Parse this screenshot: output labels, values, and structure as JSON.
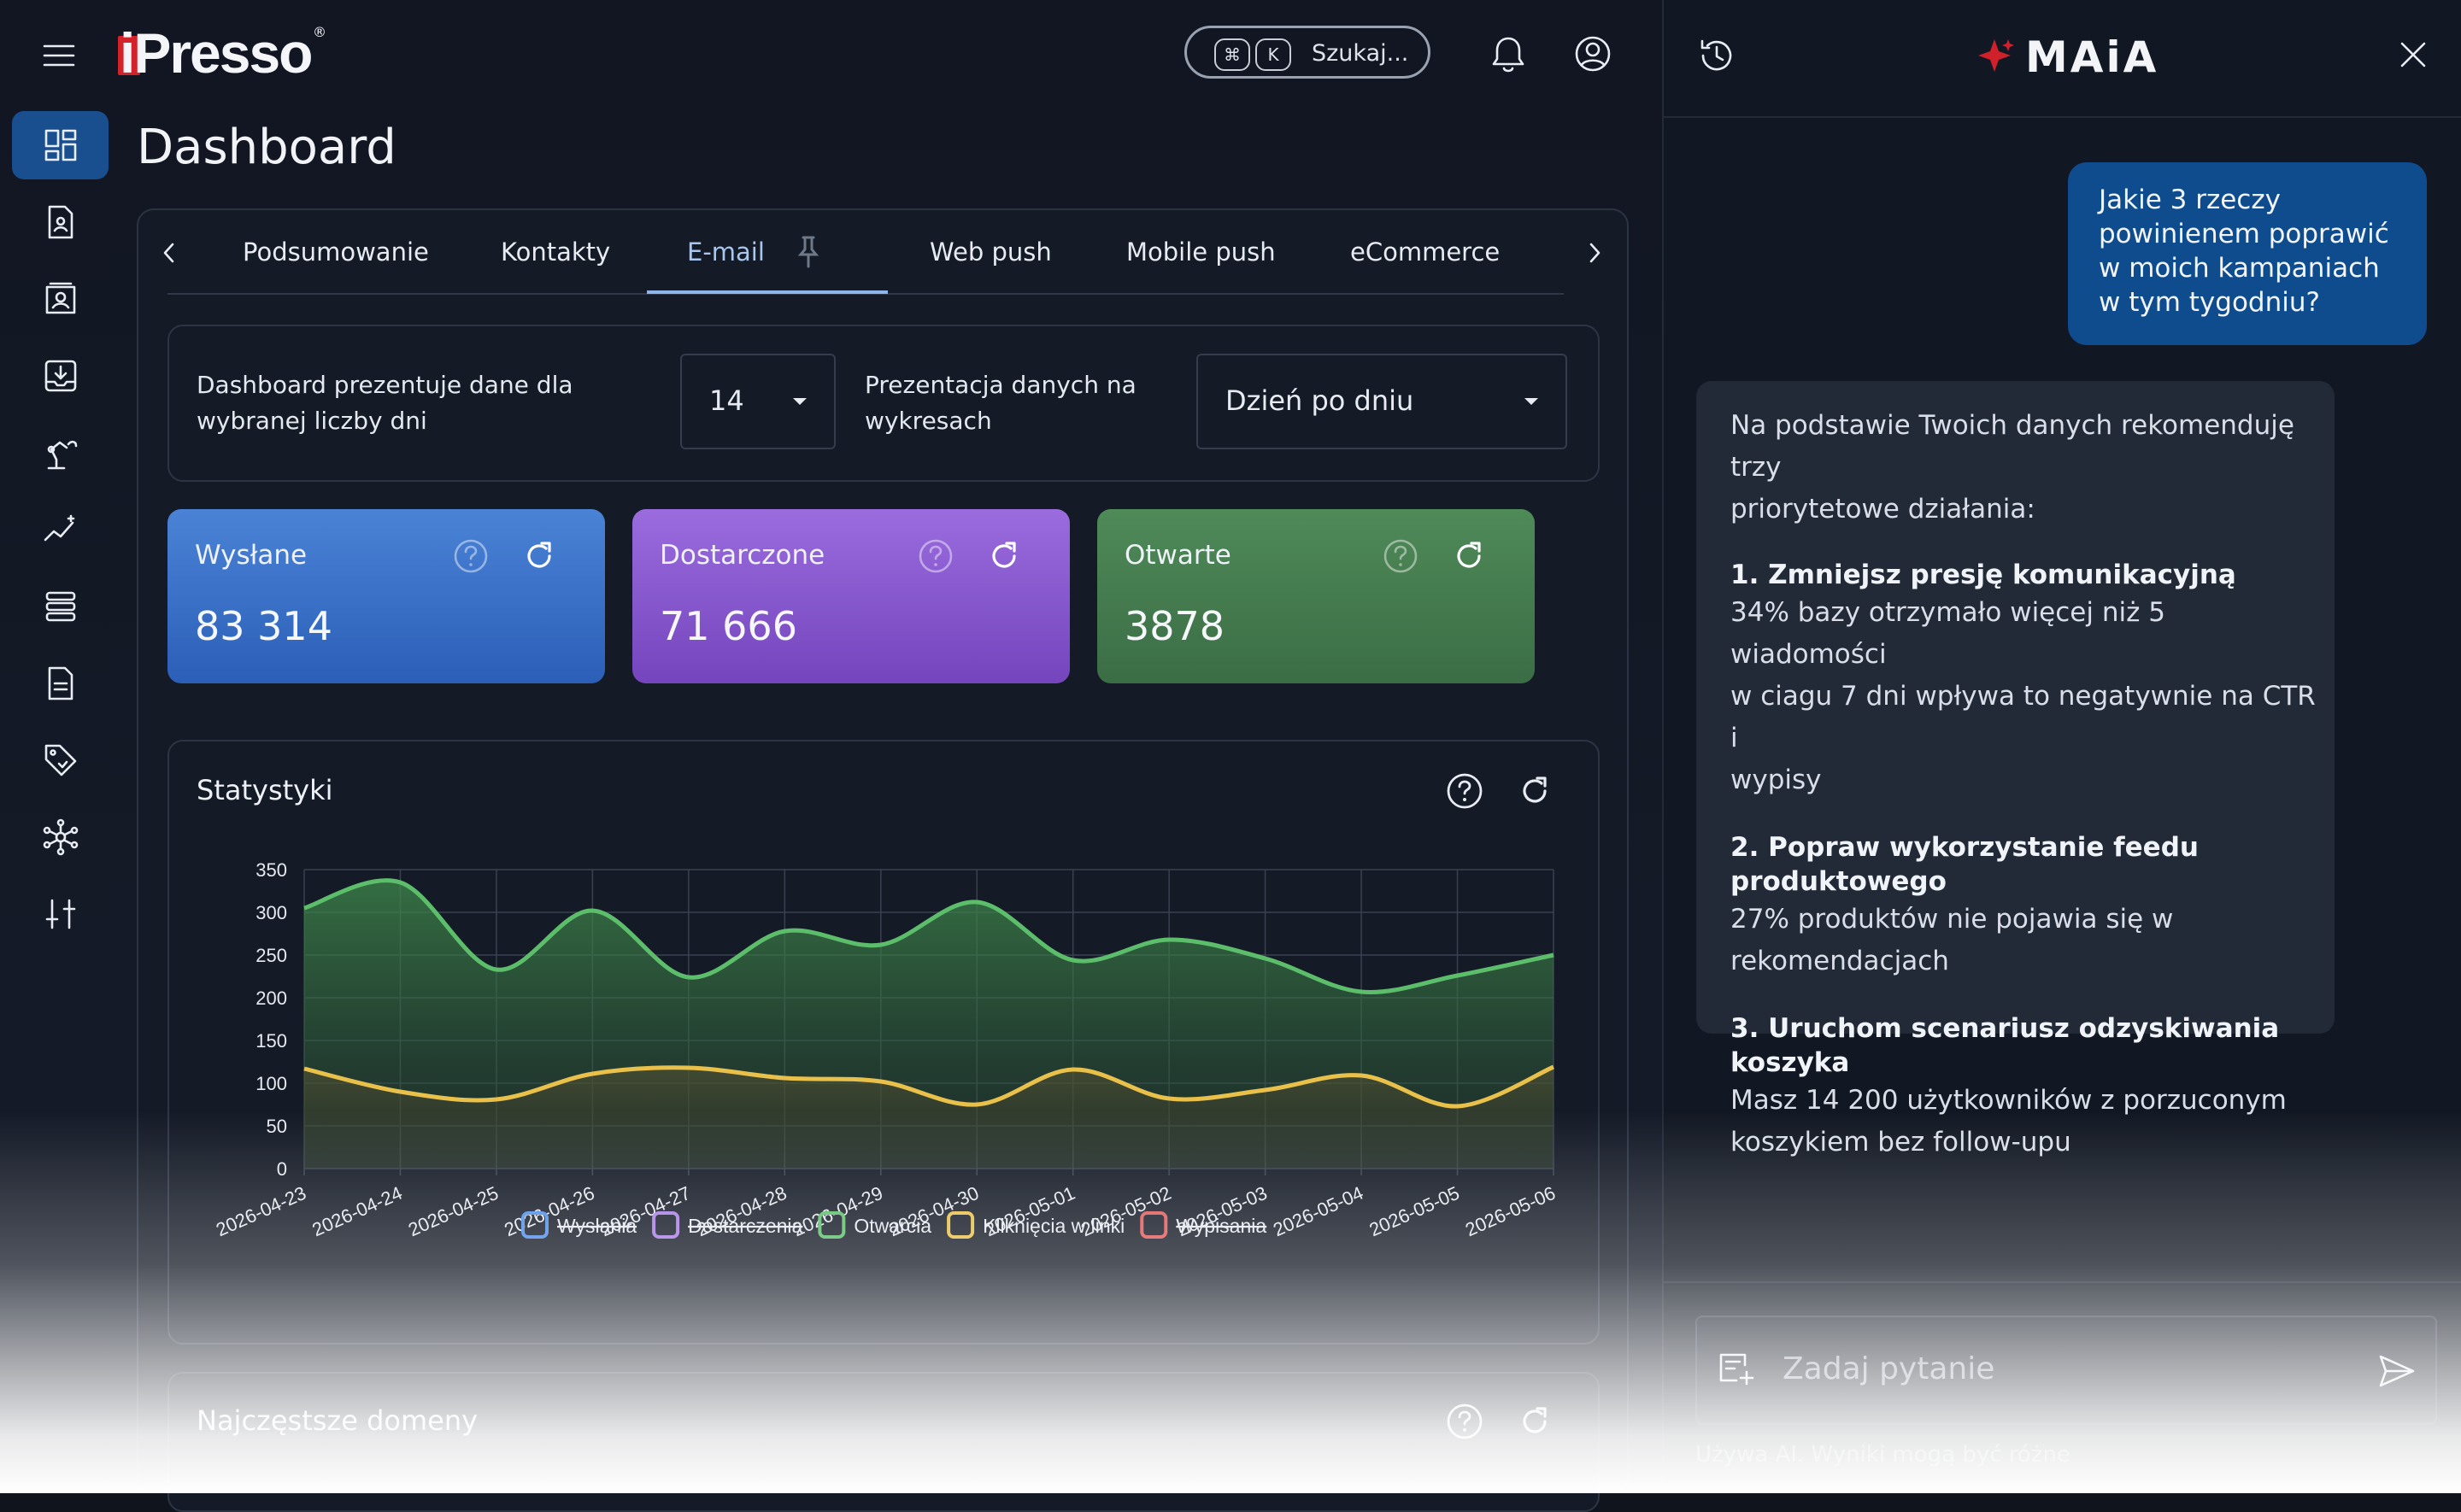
{
  "brand": {
    "logo_text": "iPresso",
    "registered": "®"
  },
  "header": {
    "search_label": "Szukaj...",
    "kbd_cmd": "⌘",
    "kbd_k": "K"
  },
  "page": {
    "title": "Dashboard"
  },
  "tabs": [
    {
      "label": "Podsumowanie"
    },
    {
      "label": "Kontakty"
    },
    {
      "label": "E-mail",
      "active": true
    },
    {
      "label": "Web push"
    },
    {
      "label": "Mobile push"
    },
    {
      "label": "eCommerce"
    }
  ],
  "filters": {
    "days_label_line1": "Dashboard prezentuje dane dla",
    "days_label_line2": "wybranej liczby dni",
    "days_value": "14",
    "presentation_label_line1": "Prezentacja danych na",
    "presentation_label_line2": "wykresach",
    "presentation_value": "Dzień po dniu"
  },
  "kpis": [
    {
      "label": "Wysłane",
      "value": "83 314",
      "color_from": "#4a83d6",
      "color_to": "#2c5fb8"
    },
    {
      "label": "Dostarczone",
      "value": "71 666",
      "color_from": "#9a6cde",
      "color_to": "#7445bd"
    },
    {
      "label": "Otwarte",
      "value": "3878",
      "color_from": "#4f8a59",
      "color_to": "#3b6d45"
    }
  ],
  "stats": {
    "title": "Statystyki",
    "legend": [
      {
        "label": "Wysłania",
        "color": "#4f8ee8",
        "hidden": true
      },
      {
        "label": "Dostarczenia",
        "color": "#a97de6",
        "hidden": true
      },
      {
        "label": "Otwarcia",
        "color": "#5cbe6a",
        "hidden": false
      },
      {
        "label": "Kliknięcia w linki",
        "color": "#e9c04a",
        "hidden": false
      },
      {
        "label": "Wypisania",
        "color": "#e05a5a",
        "hidden": true
      }
    ]
  },
  "domains": {
    "title": "Najczęstsze domeny"
  },
  "chart_data": {
    "type": "line",
    "x": [
      "2026-04-23",
      "2026-04-24",
      "2026-04-25",
      "2026-04-26",
      "2026-04-27",
      "2026-04-28",
      "2026-04-29",
      "2026-04-30",
      "2026-05-01",
      "2026-05-02",
      "2026-05-03",
      "2026-05-04",
      "2026-05-05",
      "2026-05-06"
    ],
    "ylim": [
      0,
      350
    ],
    "yticks": [
      0,
      50,
      100,
      150,
      200,
      250,
      300,
      350
    ],
    "series": [
      {
        "name": "Otwarcia",
        "color": "#5cbe6a",
        "values": [
          305,
          335,
          233,
          302,
          224,
          278,
          262,
          312,
          244,
          268,
          246,
          207,
          226,
          250
        ]
      },
      {
        "name": "Kliknięcia w linki",
        "color": "#e9c04a",
        "values": [
          117,
          90,
          81,
          111,
          118,
          106,
          102,
          75,
          116,
          82,
          92,
          109,
          73,
          119
        ]
      }
    ],
    "grid": true,
    "legend_position": "bottom"
  },
  "chat": {
    "brand": "MAiA",
    "user_message": [
      "Jakie 3 rzeczy",
      "powinienem poprawić",
      "w moich kampaniach",
      "w tym tygodniu?"
    ],
    "ai_intro": [
      "Na podstawie Twoich danych rekomenduję trzy",
      "priorytetowe działania:"
    ],
    "recommendations": [
      {
        "title": "1. Zmniejsz presję komunikacyjną",
        "body": [
          "34% bazy otrzymało więcej niż 5 wiadomości",
          "w ciagu 7 dni wpływa to negatywnie na CTR i",
          "wypisy"
        ]
      },
      {
        "title": "2. Popraw wykorzystanie feedu produktowego",
        "body": [
          "27% produktów nie pojawia się w",
          "rekomendacjach"
        ]
      },
      {
        "title": "3. Uruchom scenariusz odzyskiwania koszyka",
        "body": [
          "Masz 14 200 użytkowników z porzuconym",
          "koszykiem bez follow-upu"
        ]
      }
    ],
    "input_placeholder": "Zadaj pytanie",
    "disclaimer": "Używa AI. Wyniki mogą być różne"
  }
}
